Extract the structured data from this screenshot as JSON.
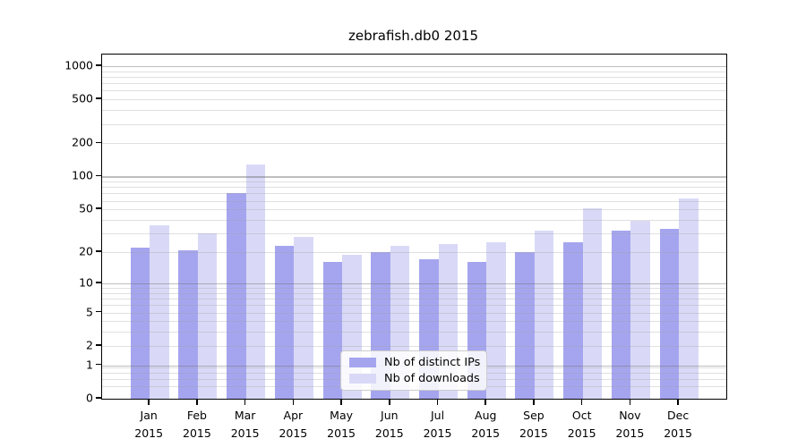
{
  "figure": {
    "background": "#ffffff"
  },
  "chart_data": {
    "type": "bar",
    "title": "zebrafish.db0 2015",
    "x_year": "2015",
    "categories": [
      "Jan",
      "Feb",
      "Mar",
      "Apr",
      "May",
      "Jun",
      "Jul",
      "Aug",
      "Sep",
      "Oct",
      "Nov",
      "Dec"
    ],
    "series": [
      {
        "name": "Nb of distinct IPs",
        "color": "#a5a5ef",
        "values": [
          22,
          21,
          71,
          23,
          16,
          20,
          17,
          16,
          20,
          25,
          32,
          33
        ]
      },
      {
        "name": "Nb of downloads",
        "color": "#d9d9f7",
        "values": [
          36,
          30,
          128,
          28,
          19,
          23,
          24,
          25,
          32,
          51,
          39,
          63
        ]
      }
    ],
    "yscale": "log1p",
    "ylim": [
      0,
      1270
    ],
    "y_tick_labels": [
      "1000",
      "500",
      "200",
      "100",
      "50",
      "20",
      "10",
      "5",
      "2",
      "1",
      "0"
    ],
    "y_tick_values": [
      1000,
      500,
      200,
      100,
      50,
      20,
      10,
      5,
      2,
      1,
      0
    ],
    "grid": "on",
    "grid_major_values": [
      1,
      10,
      100,
      1000
    ],
    "grid_minor_values": [
      0.3,
      0.5,
      0.7,
      0.9,
      2,
      3,
      4,
      5,
      6,
      7,
      8,
      9,
      20,
      30,
      40,
      50,
      60,
      70,
      80,
      90,
      200,
      300,
      400,
      500,
      600,
      700,
      800,
      900
    ],
    "legend": {
      "position": "lower center",
      "entries": [
        "Nb of distinct IPs",
        "Nb of downloads"
      ]
    },
    "colors": {
      "axis": "#000000",
      "major_grid": "#c3c3c3",
      "minor_grid": "#e7e7e7",
      "legend_border": "#cccccc"
    }
  }
}
